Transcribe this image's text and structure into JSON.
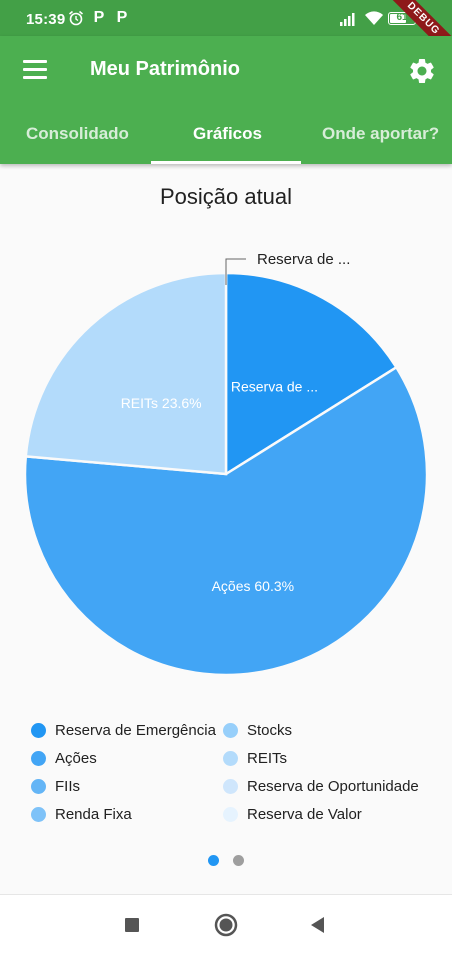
{
  "status_bar": {
    "time": "15:39",
    "notification_icon_1": "P",
    "notification_icon_2": "P",
    "battery_percent": "61",
    "battery_level": 0.61,
    "debug_banner": "DEBUG"
  },
  "app_bar": {
    "title": "Meu Patrimônio",
    "menu_icon": "menu-icon",
    "settings_icon": "gear-icon"
  },
  "tabs": [
    {
      "label": "Consolidado",
      "active": false
    },
    {
      "label": "Gráficos",
      "active": true
    },
    {
      "label": "Onde aportar?",
      "active": false
    }
  ],
  "chart_data": {
    "type": "pie",
    "title": "Posição atual",
    "slices": [
      {
        "label": "Reserva de Emergência",
        "value": 16.1,
        "data_label": "Reserva de ...",
        "color": "#2196f3"
      },
      {
        "label": "Ações",
        "value": 60.3,
        "data_label": "Ações 60.3%",
        "color": "#42a5f5"
      },
      {
        "label": "REITs",
        "value": 23.6,
        "data_label": "REITs 23.6%",
        "color": "#b3dbfb"
      }
    ],
    "callout_label": "Reserva de ...",
    "legend": [
      {
        "label": "Reserva de Emergência",
        "color": "#2196f3"
      },
      {
        "label": "Ações",
        "color": "#42a5f5"
      },
      {
        "label": "FIIs",
        "color": "#64b5f6"
      },
      {
        "label": "Renda Fixa",
        "color": "#7ec2f8"
      },
      {
        "label": "Stocks",
        "color": "#97cffa"
      },
      {
        "label": "REITs",
        "color": "#b3dbfb"
      },
      {
        "label": "Reserva de Oportunidade",
        "color": "#cfe6fc"
      },
      {
        "label": "Reserva de Valor",
        "color": "#e6f3fe"
      }
    ]
  },
  "pager": {
    "pages": 2,
    "active_page": 1,
    "active_color": "#2196f3",
    "inactive_color": "#9e9e9e"
  },
  "nav_bar": {
    "recents": "square-icon",
    "home": "circle-icon",
    "back": "triangle-back-icon"
  }
}
